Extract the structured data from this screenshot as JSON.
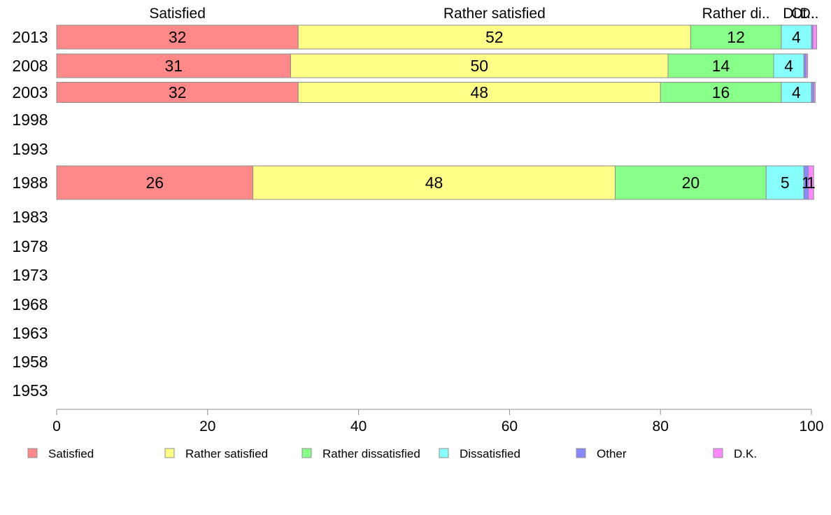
{
  "chart_data": {
    "type": "bar",
    "orientation": "horizontal",
    "stacked": true,
    "categories": [
      "2013",
      "2008",
      "2003",
      "1998",
      "1993",
      "1988",
      "1983",
      "1978",
      "1973",
      "1968",
      "1963",
      "1958",
      "1953"
    ],
    "series": [
      {
        "name": "Satisfied",
        "color": "#ff8888",
        "values": [
          32,
          31,
          32,
          null,
          null,
          26,
          null,
          null,
          null,
          null,
          null,
          null,
          null
        ]
      },
      {
        "name": "Rather satisfied",
        "color": "#ffff88",
        "values": [
          52,
          50,
          48,
          null,
          null,
          48,
          null,
          null,
          null,
          null,
          null,
          null,
          null
        ]
      },
      {
        "name": "Rather dissatisfied",
        "color": "#88ff88",
        "values": [
          12,
          14,
          16,
          null,
          null,
          20,
          null,
          null,
          null,
          null,
          null,
          null,
          null
        ]
      },
      {
        "name": "Dissatisfied",
        "color": "#88ffff",
        "values": [
          4,
          4,
          4,
          null,
          null,
          5,
          null,
          null,
          null,
          null,
          null,
          null,
          null
        ]
      },
      {
        "name": "Other",
        "color": "#8888ff",
        "values": [
          0.2,
          0.3,
          0.3,
          null,
          null,
          0.6,
          null,
          null,
          null,
          null,
          null,
          null,
          null
        ]
      },
      {
        "name": "D.K.",
        "color": "#ff88ff",
        "values": [
          0.5,
          0.2,
          0.2,
          null,
          null,
          0.7,
          null,
          null,
          null,
          null,
          null,
          null,
          null
        ]
      }
    ],
    "bar_labels": [
      [
        "32",
        "52",
        "12",
        "4",
        "",
        ""
      ],
      [
        "31",
        "50",
        "14",
        "4",
        "",
        ""
      ],
      [
        "32",
        "48",
        "16",
        "4",
        "",
        ""
      ],
      [],
      [],
      [
        "26",
        "48",
        "20",
        "5",
        "1",
        "1"
      ],
      [],
      [],
      [],
      [],
      [],
      [],
      []
    ],
    "top_labels": [
      "Satisfied",
      "Rather satisfied",
      "Rather di..",
      "Di..",
      "Ot..",
      "D.."
    ],
    "xlim": [
      0,
      100
    ],
    "xticks": [
      "0",
      "20",
      "40",
      "60",
      "80",
      "100"
    ],
    "grid": false,
    "legend_position": "bottom"
  }
}
